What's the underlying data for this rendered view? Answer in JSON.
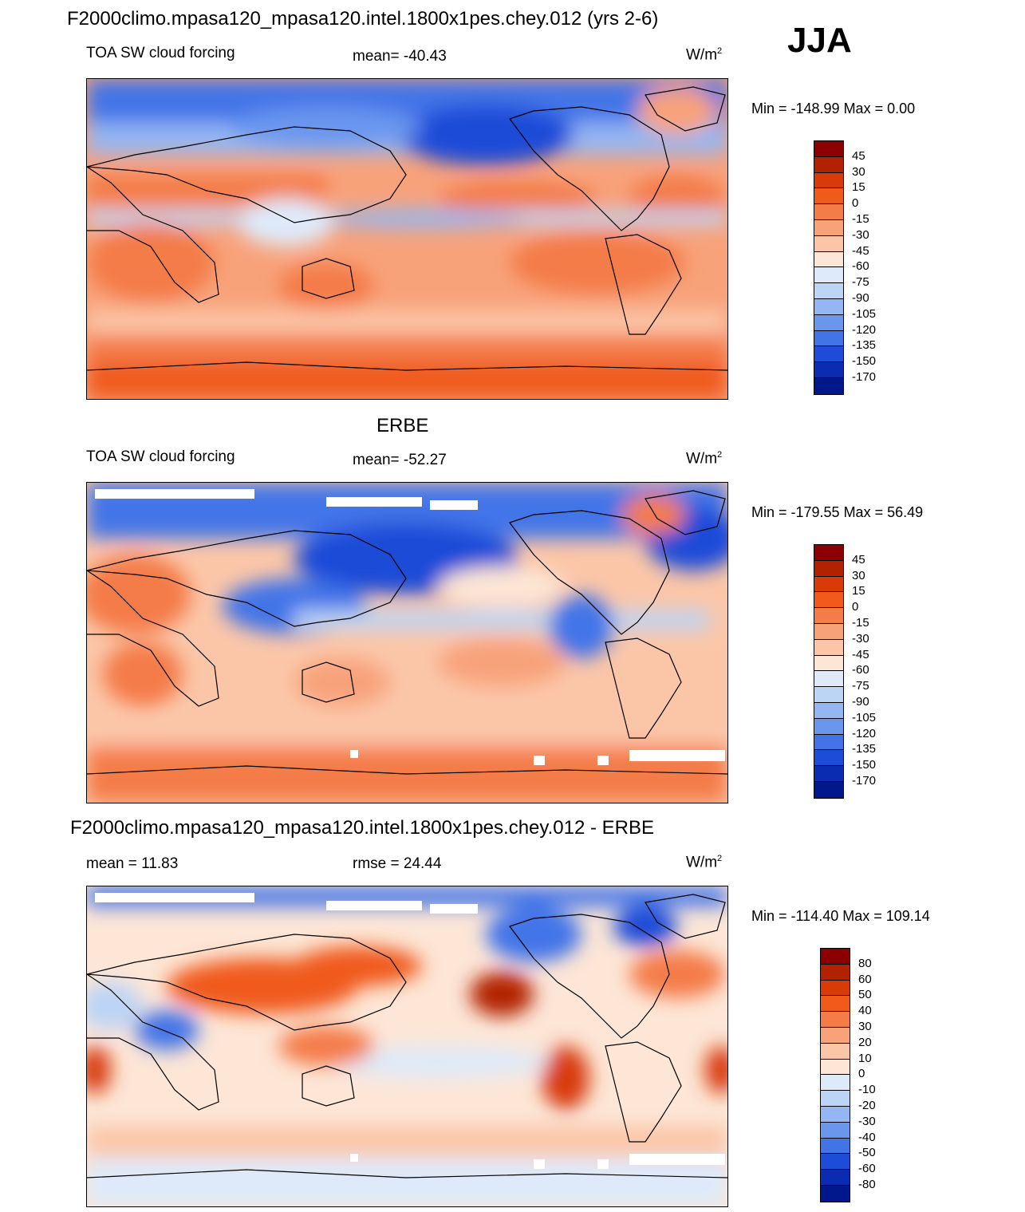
{
  "header": {
    "main_title": "F2000climo.mpasa120_mpasa120.intel.1800x1pes.chey.012 (yrs 2-6)",
    "season": "JJA"
  },
  "panels": [
    {
      "title": "",
      "left_text": "TOA SW cloud forcing",
      "center_text": "mean= -40.43",
      "units": "W/m",
      "units_sup": "2",
      "minmax": "Min = -148.99 Max =   0.00"
    },
    {
      "title": "ERBE",
      "left_text": "TOA SW cloud forcing",
      "center_text": "mean= -52.27",
      "units": "W/m",
      "units_sup": "2",
      "minmax": "Min = -179.55 Max =  56.49"
    },
    {
      "title": "F2000climo.mpasa120_mpasa120.intel.1800x1pes.chey.012 - ERBE",
      "left_text": "mean =  11.83",
      "center_text": "rmse =  24.44",
      "units": "W/m",
      "units_sup": "2",
      "minmax": "Min = -114.40 Max = 109.14"
    }
  ],
  "colorbars": {
    "field": {
      "labels": [
        "45",
        "30",
        "15",
        "0",
        "-15",
        "-30",
        "-45",
        "-60",
        "-75",
        "-90",
        "-105",
        "-120",
        "-135",
        "-150",
        "-170"
      ],
      "colors": [
        "#8b0000",
        "#b22200",
        "#d83a08",
        "#f05a1a",
        "#f47c48",
        "#f8a27a",
        "#fbc6a8",
        "#fde6d6",
        "#deeafa",
        "#bcd4f6",
        "#94b6f2",
        "#6a96ee",
        "#4274e8",
        "#1c4cd8",
        "#0a2cb0",
        "#00188c"
      ]
    },
    "diff": {
      "labels": [
        "80",
        "60",
        "50",
        "40",
        "30",
        "20",
        "10",
        "0",
        "-10",
        "-20",
        "-30",
        "-40",
        "-50",
        "-60",
        "-80"
      ],
      "colors": [
        "#8b0000",
        "#b22200",
        "#d83a08",
        "#f05a1a",
        "#f47c48",
        "#f8a27a",
        "#fbc6a8",
        "#fde6d6",
        "#deeafa",
        "#bcd4f6",
        "#94b6f2",
        "#6a96ee",
        "#4274e8",
        "#1c4cd8",
        "#0a2cb0",
        "#00188c"
      ]
    }
  }
}
